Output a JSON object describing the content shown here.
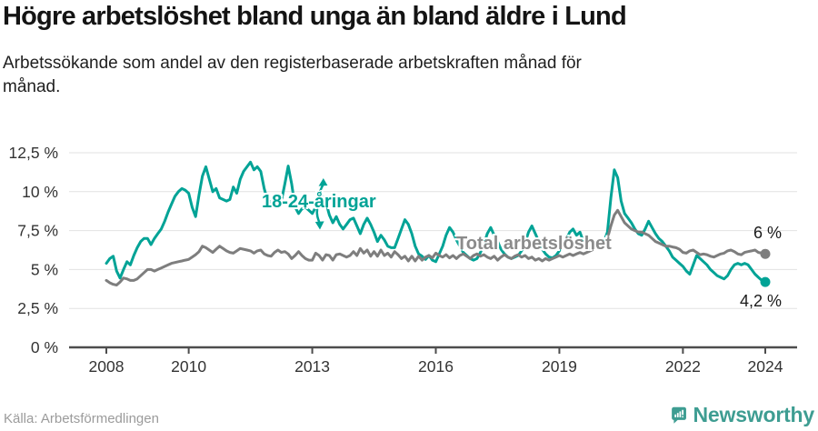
{
  "header": {
    "title": "Högre arbetslöshet bland unga än bland äldre i Lund",
    "subtitle": "Arbetssökande som andel av den registerbaserade arbetskraften månad för månad."
  },
  "chart_data": {
    "type": "line",
    "title": "Högre arbetslöshet bland unga än bland äldre i Lund",
    "unit": "%",
    "frequency": "monthly",
    "x_start": "2008-01",
    "x_end": "2024-01",
    "ylim": [
      0,
      12.5
    ],
    "grid": true,
    "legend_position": "inline",
    "y_tick_values": [
      0,
      2.5,
      5,
      7.5,
      10,
      12.5
    ],
    "y_tick_labels": [
      "0 %",
      "2,5 %",
      "5 %",
      "7,5 %",
      "10 %",
      "12,5 %"
    ],
    "x_ticks": [
      {
        "year": 2008,
        "label": "2008"
      },
      {
        "year": 2010,
        "label": "2010"
      },
      {
        "year": 2013,
        "label": "2013"
      },
      {
        "year": 2016,
        "label": "2016"
      },
      {
        "year": 2019,
        "label": "2019"
      },
      {
        "year": 2022,
        "label": "2022"
      },
      {
        "year": 2024,
        "label": "2024"
      }
    ],
    "series": [
      {
        "name": "18-24-åringar",
        "color": "#00A396",
        "end_label": "4,2 %",
        "end_value": 4.2,
        "values": [
          5.4,
          5.7,
          5.85,
          4.9,
          4.45,
          5.0,
          5.5,
          5.3,
          5.9,
          6.4,
          6.8,
          7.0,
          7.0,
          6.6,
          7.0,
          7.3,
          7.6,
          8.1,
          8.7,
          9.2,
          9.7,
          10.0,
          10.2,
          10.1,
          9.9,
          9.0,
          8.4,
          9.8,
          11.0,
          11.6,
          10.8,
          10.0,
          10.2,
          9.6,
          9.5,
          9.4,
          9.5,
          10.3,
          9.9,
          10.8,
          11.3,
          11.6,
          11.9,
          11.4,
          11.6,
          11.3,
          10.2,
          9.4,
          9.35,
          9.6,
          9.2,
          9.4,
          10.5,
          11.65,
          10.5,
          9.0,
          8.6,
          8.9,
          9.0,
          8.8,
          8.6,
          9.0,
          9.4,
          9.7,
          9.3,
          8.5,
          8.0,
          8.4,
          7.9,
          7.6,
          7.9,
          8.2,
          8.3,
          7.8,
          7.3,
          7.9,
          8.3,
          7.9,
          7.4,
          6.8,
          7.2,
          6.9,
          6.5,
          6.4,
          6.4,
          7.0,
          7.6,
          8.2,
          7.9,
          7.3,
          6.5,
          6.0,
          5.85,
          5.65,
          5.9,
          5.6,
          5.5,
          6.0,
          6.5,
          7.2,
          7.7,
          7.4,
          6.9,
          6.5,
          6.1,
          5.9,
          5.7,
          5.6,
          5.7,
          6.1,
          6.6,
          7.3,
          7.7,
          7.2,
          6.8,
          6.3,
          6.0,
          5.8,
          5.7,
          5.8,
          5.9,
          6.2,
          6.7,
          7.4,
          7.8,
          7.3,
          6.8,
          6.3,
          6.0,
          5.8,
          5.75,
          5.9,
          6.2,
          6.5,
          6.9,
          7.4,
          7.6,
          7.2,
          7.4,
          6.8,
          6.5,
          6.3,
          6.4,
          6.5,
          6.6,
          6.8,
          7.4,
          9.6,
          11.4,
          10.9,
          9.4,
          8.6,
          8.3,
          8.0,
          7.6,
          7.3,
          7.2,
          7.6,
          8.1,
          7.7,
          7.3,
          7.0,
          6.8,
          6.5,
          6.2,
          5.8,
          5.6,
          5.4,
          5.2,
          4.9,
          4.7,
          5.3,
          5.9,
          5.7,
          5.5,
          5.3,
          5.0,
          4.8,
          4.6,
          4.5,
          4.4,
          4.6,
          5.0,
          5.3,
          5.4,
          5.3,
          5.4,
          5.3,
          5.0,
          4.7,
          4.5,
          4.3,
          4.2
        ]
      },
      {
        "name": "Total arbetslöshet",
        "color": "#7E7E7E",
        "end_label": "6 %",
        "end_value": 6.0,
        "values": [
          4.3,
          4.15,
          4.05,
          4.0,
          4.2,
          4.45,
          4.4,
          4.3,
          4.3,
          4.4,
          4.6,
          4.8,
          5.0,
          5.0,
          4.9,
          5.0,
          5.1,
          5.2,
          5.3,
          5.4,
          5.45,
          5.5,
          5.55,
          5.6,
          5.65,
          5.8,
          5.95,
          6.15,
          6.5,
          6.4,
          6.25,
          6.1,
          6.3,
          6.5,
          6.35,
          6.2,
          6.1,
          6.05,
          6.2,
          6.35,
          6.3,
          6.25,
          6.2,
          6.05,
          6.2,
          6.25,
          6.0,
          5.9,
          5.85,
          6.1,
          6.25,
          6.1,
          6.15,
          6.0,
          5.7,
          5.9,
          6.15,
          5.9,
          5.7,
          5.6,
          5.6,
          6.05,
          5.9,
          5.6,
          5.95,
          5.9,
          5.6,
          5.95,
          6.0,
          5.9,
          5.8,
          5.9,
          6.15,
          5.9,
          6.35,
          6.05,
          6.25,
          5.85,
          6.15,
          5.85,
          6.25,
          5.9,
          6.05,
          5.8,
          6.15,
          5.95,
          5.7,
          5.85,
          5.55,
          5.85,
          5.55,
          5.85,
          5.6,
          5.8,
          5.9,
          5.75,
          6.05,
          5.9,
          5.8,
          5.95,
          5.75,
          5.9,
          5.7,
          5.9,
          6.0,
          5.85,
          5.7,
          5.9,
          6.0,
          5.85,
          5.95,
          5.8,
          5.7,
          5.85,
          5.6,
          5.8,
          5.95,
          5.8,
          5.7,
          5.85,
          5.95,
          5.8,
          5.9,
          5.7,
          5.8,
          5.6,
          5.7,
          5.55,
          5.7,
          5.6,
          5.7,
          5.8,
          5.9,
          5.8,
          5.9,
          6.0,
          5.9,
          6.0,
          6.1,
          6.0,
          6.1,
          6.2,
          6.3,
          6.4,
          6.5,
          6.6,
          7.0,
          7.8,
          8.5,
          8.8,
          8.4,
          8.0,
          7.8,
          7.6,
          7.5,
          7.4,
          7.4,
          7.3,
          7.2,
          7.0,
          6.8,
          6.7,
          6.6,
          6.5,
          6.5,
          6.45,
          6.4,
          6.3,
          6.1,
          6.05,
          6.2,
          6.25,
          6.1,
          5.95,
          6.0,
          5.95,
          5.85,
          5.8,
          5.9,
          6.0,
          6.05,
          6.2,
          6.25,
          6.15,
          6.0,
          5.95,
          6.1,
          6.15,
          6.2,
          6.25,
          6.1,
          6.05,
          6.0
        ]
      }
    ],
    "annotations": {
      "arrows": [
        {
          "target": "18-24-åringar",
          "direction": "up"
        },
        {
          "target": "18-24-åringar",
          "direction": "down"
        }
      ]
    },
    "style": {
      "grid_color": "#e2e2e2",
      "axis_color": "#4d4d4d",
      "tick_text_color": "#333333",
      "youth_label_color": "#00A396",
      "total_label_color": "#8b8b8b",
      "end_label_color": "#1a1a1a"
    }
  },
  "footer": {
    "source": "Källa: Arbetsförmedlingen",
    "brand_name": "Newsworthy",
    "brand_color": "#3E9D92"
  }
}
